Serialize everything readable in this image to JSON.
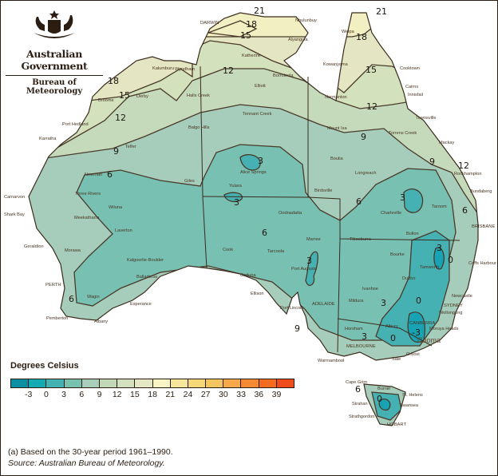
{
  "header": {
    "logo_emblem": "Commonwealth Coat of Arms",
    "government": "Australian Government",
    "agency": "Bureau of Meteorology"
  },
  "legend": {
    "title": "Degrees Celsius",
    "colors": [
      "#0e8ea3",
      "#13aab3",
      "#45b0b0",
      "#78c1b1",
      "#a6cebb",
      "#c2d9b9",
      "#d2e0bd",
      "#e5e6c3",
      "#f7f5c3",
      "#f6e59c",
      "#f6d778",
      "#f4c45f",
      "#f5a94b",
      "#f58a34",
      "#f36c20",
      "#ee4c1c"
    ],
    "ticks": [
      "-3",
      "0",
      "3",
      "6",
      "9",
      "12",
      "15",
      "18",
      "21",
      "24",
      "27",
      "30",
      "33",
      "36",
      "39"
    ]
  },
  "notes": {
    "footnote": "(a) Based on the 30-year period 1961–1990.",
    "source": "Source: Australian Bureau of Meteorology."
  },
  "contour_labels": [
    "21",
    "18",
    "15",
    "12",
    "9",
    "6",
    "3",
    "0",
    "-3"
  ],
  "places": {
    "kalumburu": "Kalumburu",
    "wyndham": "Wyndham",
    "derby": "Derby",
    "broome": "Broome",
    "halls_creek": "Halls Creek",
    "port_hedland": "Port Hedland",
    "karratha": "Karratha",
    "telfer": "Telfer",
    "balgo_hills": "Balgo Hills",
    "newman": "Newman",
    "giles": "Giles",
    "three_rivers": "Three Rivers",
    "wiluna": "Wiluna",
    "meekatharra": "Meekatharra",
    "carnarvon": "Carnarvon",
    "shark_bay": "Shark Bay",
    "laverton": "Laverton",
    "geraldton": "Geraldton",
    "morawa": "Morawa",
    "kalgoorlie": "Kalgoorlie-Boulder",
    "balladonia": "Balladonia",
    "perth": "PERTH",
    "wagin": "Wagin",
    "esperance": "Esperance",
    "pemberton": "Pemberton",
    "albany": "Albany",
    "darwin": "DARWIN",
    "nhulunbuy": "Nhulunbuy",
    "alyangula": "Alyangula",
    "katherine": "Katherine",
    "borroloola": "Borroloola",
    "elliott": "Elliott",
    "tennant_creek": "Tennant Creek",
    "alice_springs": "Alice Springs",
    "yulara": "Yulara",
    "cook": "Cook",
    "oodnadatta": "Oodnadatta",
    "marree": "Marree",
    "tarcoola": "Tarcoola",
    "ceduna": "Ceduna",
    "port_augusta": "Port Augusta",
    "ellison": "Ellison",
    "port_lincoln": "Port Lincoln",
    "adelaide": "ADELAIDE",
    "weipa": "Weipa",
    "kowanyama": "Kowanyama",
    "cooktown": "Cooktown",
    "cairns": "Cairns",
    "innisfail": "Innisfail",
    "normanton": "Normanton",
    "townsville": "Townsville",
    "mount_isa": "Mount Isa",
    "torrens_creek": "Torrens Creek",
    "mackay": "Mackay",
    "boulia": "Boulia",
    "rockhampton": "Rockhampton",
    "longreach": "Longreach",
    "bundaberg": "Bundaberg",
    "birdsville": "Birdsville",
    "taroom": "Taroom",
    "charleville": "Charleville",
    "brisbane": "BRISBANE",
    "bollon": "Bollon",
    "tibooburra": "Tibooburra",
    "bourke": "Bourke",
    "coffs_harbour": "Coffs Harbour",
    "tamworth": "Tamworth",
    "ivanhoe": "Ivanhoe",
    "dubbo": "Dubbo",
    "newcastle": "Newcastle",
    "mildura": "Mildura",
    "sydney": "SYDNEY",
    "wollongong": "Wollongong",
    "canberra": "CANBERRA",
    "moruya_heads": "Moruya Heads",
    "cooma": "Cooma",
    "albury": "Albury",
    "horsham": "Horsham",
    "melbourne": "MELBOURNE",
    "warrnambool": "Warrnambool",
    "orbost": "Orbost",
    "sale": "Sale",
    "cape_grim": "Cape Grim",
    "burnie": "Burnie",
    "st_helens": "St. Helens",
    "strahan": "Strahan",
    "swansea": "Swansea",
    "strathgordon": "Strathgordon",
    "hobart": "HOBART"
  }
}
